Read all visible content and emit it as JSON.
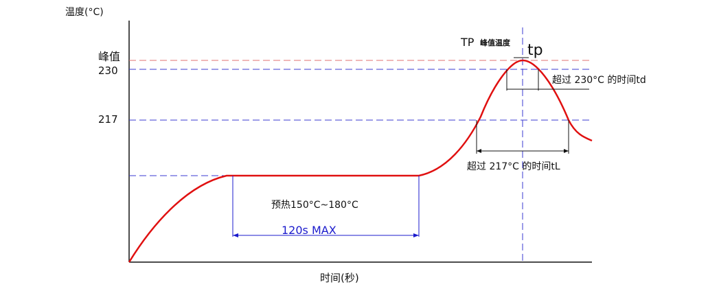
{
  "diagram": {
    "y_axis_title": "温度(°C)",
    "x_axis_title": "时间(秒)",
    "y_labels": {
      "peak": "峰值",
      "t230": "230",
      "t217": "217"
    },
    "tp_label": "TP",
    "tp_caption": "峰值温度",
    "tp_short": "tp",
    "td_label": "超过 230°C 的时间td",
    "tl_label": "超过 217°C 的时间tL",
    "preheat_label": "预热150°C~180°C",
    "preheat_duration": "120s MAX",
    "colors": {
      "curve": "#e01010",
      "ref_blue": "#3a3ad0",
      "ref_red": "#e07070",
      "dim_blue": "#1a1acc",
      "axis": "#111111"
    }
  }
}
